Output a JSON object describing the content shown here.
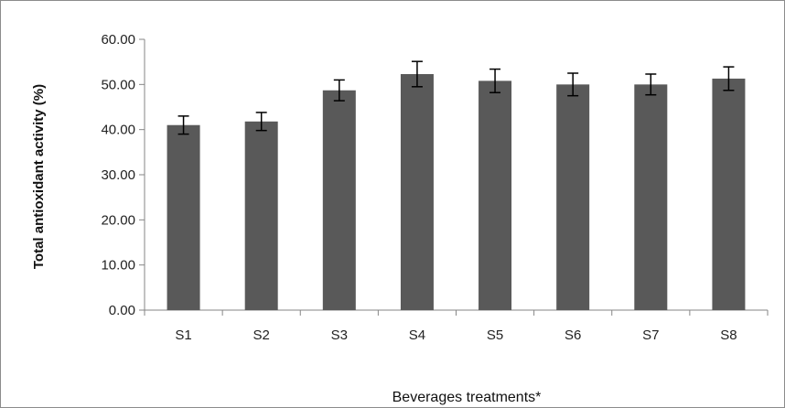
{
  "chart_data": {
    "type": "bar",
    "categories": [
      "S1",
      "S2",
      "S3",
      "S4",
      "S5",
      "S6",
      "S7",
      "S8"
    ],
    "series": [
      {
        "values": [
          41.0,
          41.8,
          48.7,
          52.3,
          50.8,
          50.0,
          50.0,
          51.3
        ],
        "error": [
          2.0,
          2.0,
          2.3,
          2.8,
          2.6,
          2.5,
          2.3,
          2.6
        ]
      }
    ],
    "xlabel": "Beverages treatments*",
    "ylabel": "Total antioxidant activity (%)",
    "ylim": [
      0,
      60
    ],
    "yticks": [
      "0.00",
      "10.00",
      "20.00",
      "30.00",
      "40.00",
      "50.00",
      "60.00"
    ],
    "ytick_values": [
      0,
      10,
      20,
      30,
      40,
      50,
      60
    ],
    "grid": false,
    "legend": "none",
    "bar_color": "#595959",
    "error_color": "#000000",
    "axis_color": "#868686"
  }
}
